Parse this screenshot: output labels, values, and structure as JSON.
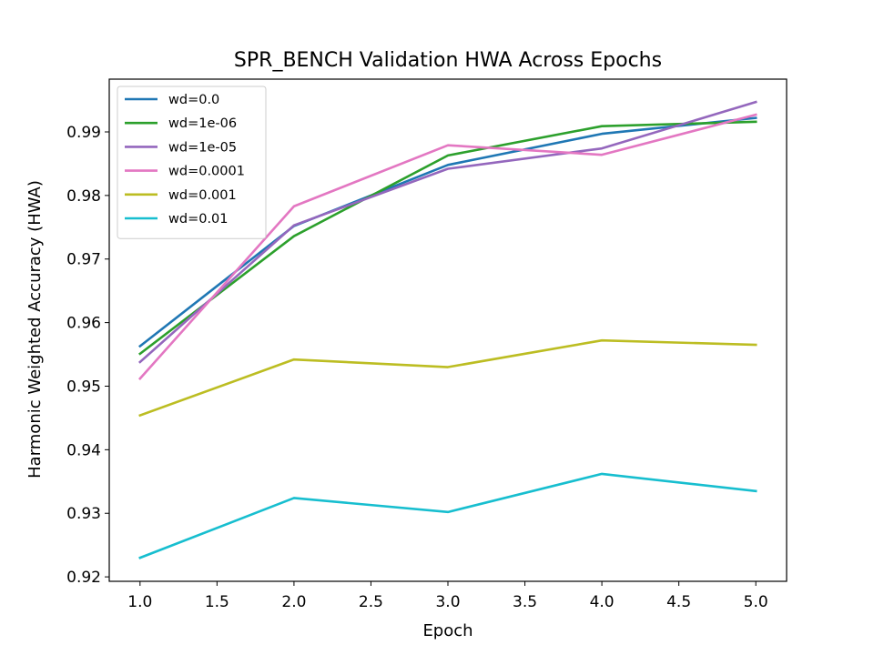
{
  "chart_data": {
    "type": "line",
    "title": "SPR_BENCH Validation HWA Across Epochs",
    "xlabel": "Epoch",
    "ylabel": "Harmonic Weighted Accuracy (HWA)",
    "xlim": [
      0.8,
      5.2
    ],
    "ylim": [
      0.9193,
      0.9983
    ],
    "xticks": [
      1.0,
      1.5,
      2.0,
      2.5,
      3.0,
      3.5,
      4.0,
      4.5,
      5.0
    ],
    "xtick_labels": [
      "1.0",
      "1.5",
      "2.0",
      "2.5",
      "3.0",
      "3.5",
      "4.0",
      "4.5",
      "5.0"
    ],
    "yticks": [
      0.92,
      0.93,
      0.94,
      0.95,
      0.96,
      0.97,
      0.98,
      0.99
    ],
    "ytick_labels": [
      "0.92",
      "0.93",
      "0.94",
      "0.95",
      "0.96",
      "0.97",
      "0.98",
      "0.99"
    ],
    "legend_position": "top-left",
    "grid": false,
    "x": [
      1,
      2,
      3,
      4,
      5
    ],
    "series": [
      {
        "name": "wd=0.0",
        "color": "#1f77b4",
        "values": [
          0.9563,
          0.9752,
          0.9848,
          0.9897,
          0.9922
        ]
      },
      {
        "name": "wd=1e-06",
        "color": "#2ca02c",
        "values": [
          0.9551,
          0.9736,
          0.9863,
          0.9909,
          0.9916
        ]
      },
      {
        "name": "wd=1e-05",
        "color": "#9467bd",
        "values": [
          0.9538,
          0.9753,
          0.9842,
          0.9874,
          0.9947
        ]
      },
      {
        "name": "wd=0.0001",
        "color": "#e377c2",
        "values": [
          0.9512,
          0.9783,
          0.9879,
          0.9864,
          0.9927
        ]
      },
      {
        "name": "wd=0.001",
        "color": "#bcbd22",
        "values": [
          0.9454,
          0.9542,
          0.953,
          0.9572,
          0.9565
        ]
      },
      {
        "name": "wd=0.01",
        "color": "#17becf",
        "values": [
          0.923,
          0.9324,
          0.9302,
          0.9362,
          0.9335
        ]
      }
    ]
  }
}
